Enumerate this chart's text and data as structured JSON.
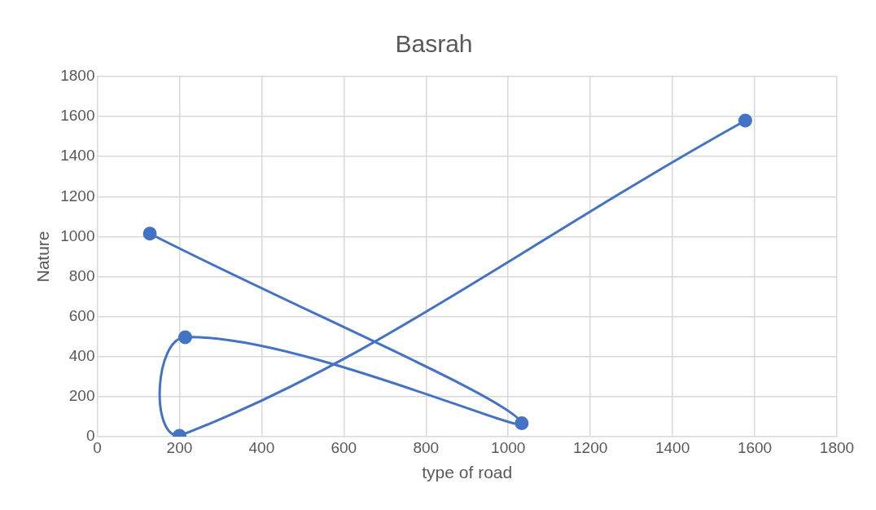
{
  "chart_data": {
    "type": "line",
    "title": "Basrah",
    "xlabel": "type of road",
    "ylabel": "Nature",
    "x": [
      128,
      1033,
      214,
      200,
      1577
    ],
    "series": [
      {
        "color": "#4472c4",
        "values": [
          1015,
          67,
          497,
          4,
          1580
        ]
      }
    ],
    "xlim": [
      0,
      1800
    ],
    "xticks": [
      0,
      200,
      400,
      600,
      800,
      1000,
      1200,
      1400,
      1600,
      1800
    ],
    "ylim": [
      0,
      1800
    ],
    "yticks": [
      0,
      200,
      400,
      600,
      800,
      1000,
      1200,
      1400,
      1600,
      1800
    ],
    "grid": true,
    "marker": "circle",
    "legend": false
  }
}
